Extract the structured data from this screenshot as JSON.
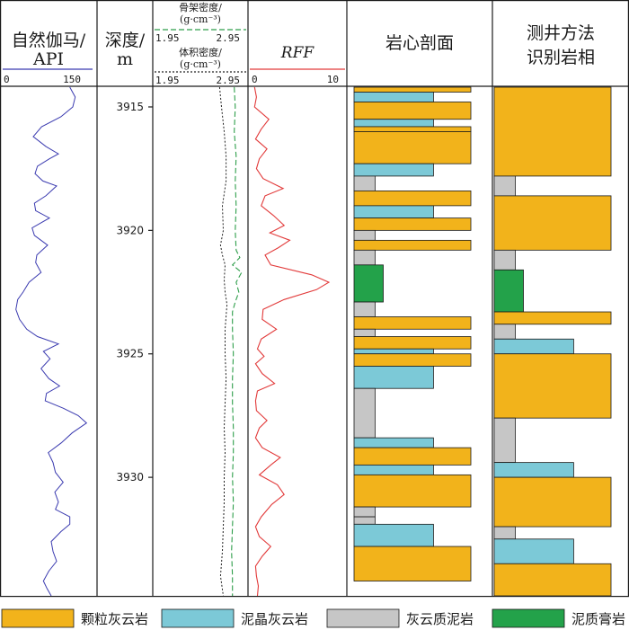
{
  "chart_data": {
    "type": "well_log",
    "depth_range": [
      3914.2,
      3934.8
    ],
    "depth_ticks": [
      3915,
      3920,
      3925,
      3930
    ],
    "tracks": {
      "gr": {
        "title_line1": "自然伽马/",
        "title_line2": "API",
        "scale_min": "0",
        "scale_max": "150",
        "range": [
          0,
          150
        ],
        "color": "#3b3bb0",
        "points": [
          [
            3914.2,
            112
          ],
          [
            3914.6,
            121
          ],
          [
            3915.0,
            117
          ],
          [
            3915.4,
            97
          ],
          [
            3915.8,
            65
          ],
          [
            3916.2,
            51
          ],
          [
            3916.6,
            72
          ],
          [
            3916.9,
            93
          ],
          [
            3917.1,
            78
          ],
          [
            3917.4,
            58
          ],
          [
            3917.7,
            54
          ],
          [
            3918.0,
            67
          ],
          [
            3918.2,
            90
          ],
          [
            3918.6,
            72
          ],
          [
            3918.9,
            53
          ],
          [
            3919.2,
            55
          ],
          [
            3919.5,
            78
          ],
          [
            3919.9,
            49
          ],
          [
            3920.2,
            53
          ],
          [
            3920.6,
            75
          ],
          [
            3921.0,
            57
          ],
          [
            3921.3,
            55
          ],
          [
            3921.7,
            64
          ],
          [
            3922.1,
            44
          ],
          [
            3922.5,
            34
          ],
          [
            3922.8,
            25
          ],
          [
            3923.2,
            22
          ],
          [
            3923.6,
            28
          ],
          [
            3924.0,
            40
          ],
          [
            3924.3,
            58
          ],
          [
            3924.6,
            93
          ],
          [
            3924.9,
            68
          ],
          [
            3925.2,
            79
          ],
          [
            3925.6,
            64
          ],
          [
            3926.0,
            77
          ],
          [
            3926.3,
            95
          ],
          [
            3926.6,
            73
          ],
          [
            3926.9,
            71
          ],
          [
            3927.2,
            101
          ],
          [
            3927.5,
            126
          ],
          [
            3927.8,
            140
          ],
          [
            3928.2,
            116
          ],
          [
            3928.6,
            98
          ],
          [
            3929.0,
            76
          ],
          [
            3929.4,
            84
          ],
          [
            3929.8,
            88
          ],
          [
            3930.2,
            101
          ],
          [
            3930.6,
            87
          ],
          [
            3931.0,
            93
          ],
          [
            3931.3,
            88
          ],
          [
            3931.6,
            112
          ],
          [
            3931.9,
            112
          ],
          [
            3932.2,
            97
          ],
          [
            3932.6,
            81
          ],
          [
            3933.0,
            84
          ],
          [
            3933.4,
            90
          ],
          [
            3933.8,
            77
          ],
          [
            3934.2,
            68
          ],
          [
            3934.5,
            74
          ],
          [
            3934.8,
            81
          ]
        ]
      },
      "density": {
        "title1": "骨架密度/",
        "unit1": "(g·cm⁻³)",
        "scale1_min": "1.95",
        "scale1_max": "2.95",
        "title2": "体积密度/",
        "unit2": "(g·cm⁻³)",
        "scale2_min": "1.95",
        "scale2_max": "2.95",
        "range": [
          1.95,
          2.95
        ],
        "matrix_color": "#2e9e4a",
        "bulk_color": "#222222",
        "matrix_points": [
          [
            3914.2,
            2.82
          ],
          [
            3915.0,
            2.83
          ],
          [
            3916.0,
            2.82
          ],
          [
            3917.0,
            2.84
          ],
          [
            3918.0,
            2.83
          ],
          [
            3919.0,
            2.84
          ],
          [
            3920.0,
            2.83
          ],
          [
            3920.8,
            2.84
          ],
          [
            3921.1,
            2.88
          ],
          [
            3921.4,
            2.8
          ],
          [
            3921.7,
            2.9
          ],
          [
            3922.1,
            2.84
          ],
          [
            3922.5,
            2.87
          ],
          [
            3922.9,
            2.83
          ],
          [
            3923.3,
            2.8
          ],
          [
            3924.0,
            2.8
          ],
          [
            3925.0,
            2.81
          ],
          [
            3926.0,
            2.8
          ],
          [
            3927.0,
            2.8
          ],
          [
            3928.0,
            2.81
          ],
          [
            3929.0,
            2.81
          ],
          [
            3930.0,
            2.8
          ],
          [
            3931.0,
            2.81
          ],
          [
            3932.0,
            2.8
          ],
          [
            3933.0,
            2.79
          ],
          [
            3934.0,
            2.8
          ],
          [
            3934.8,
            2.8
          ]
        ],
        "bulk_points": [
          [
            3914.2,
            2.66
          ],
          [
            3915.0,
            2.68
          ],
          [
            3916.0,
            2.71
          ],
          [
            3917.0,
            2.73
          ],
          [
            3918.0,
            2.73
          ],
          [
            3919.0,
            2.69
          ],
          [
            3920.0,
            2.7
          ],
          [
            3920.6,
            2.67
          ],
          [
            3921.0,
            2.69
          ],
          [
            3921.4,
            2.72
          ],
          [
            3922.0,
            2.71
          ],
          [
            3922.5,
            2.72
          ],
          [
            3923.0,
            2.74
          ],
          [
            3924.0,
            2.72
          ],
          [
            3925.0,
            2.72
          ],
          [
            3926.0,
            2.73
          ],
          [
            3927.0,
            2.72
          ],
          [
            3928.0,
            2.71
          ],
          [
            3929.0,
            2.72
          ],
          [
            3930.0,
            2.71
          ],
          [
            3931.0,
            2.71
          ],
          [
            3932.0,
            2.7
          ],
          [
            3933.0,
            2.69
          ],
          [
            3934.0,
            2.67
          ],
          [
            3934.8,
            2.7
          ]
        ]
      },
      "rff": {
        "title": "RFF",
        "scale_min": "0",
        "scale_max": "10",
        "range": [
          0,
          10
        ],
        "color": "#e23a3a",
        "points": [
          [
            3914.2,
            0.5
          ],
          [
            3914.6,
            0.7
          ],
          [
            3915.0,
            0.5
          ],
          [
            3915.5,
            2.0
          ],
          [
            3915.9,
            1.2
          ],
          [
            3916.3,
            0.6
          ],
          [
            3916.7,
            1.8
          ],
          [
            3917.1,
            1.0
          ],
          [
            3917.5,
            0.7
          ],
          [
            3917.9,
            1.4
          ],
          [
            3918.3,
            3.5
          ],
          [
            3918.6,
            1.6
          ],
          [
            3919.0,
            1.2
          ],
          [
            3919.4,
            2.5
          ],
          [
            3919.8,
            3.6
          ],
          [
            3920.1,
            2.1
          ],
          [
            3920.4,
            4.2
          ],
          [
            3920.7,
            3.0
          ],
          [
            3921.0,
            1.6
          ],
          [
            3921.4,
            2.2
          ],
          [
            3921.8,
            6.5
          ],
          [
            3922.1,
            8.3
          ],
          [
            3922.4,
            7.0
          ],
          [
            3922.8,
            3.6
          ],
          [
            3923.2,
            1.4
          ],
          [
            3923.6,
            1.3
          ],
          [
            3924.0,
            2.8
          ],
          [
            3924.4,
            1.2
          ],
          [
            3924.8,
            0.8
          ],
          [
            3925.1,
            1.5
          ],
          [
            3925.4,
            0.6
          ],
          [
            3925.8,
            1.3
          ],
          [
            3926.2,
            2.6
          ],
          [
            3926.5,
            0.8
          ],
          [
            3926.9,
            0.6
          ],
          [
            3927.3,
            0.7
          ],
          [
            3927.7,
            1.8
          ],
          [
            3928.0,
            1.0
          ],
          [
            3928.4,
            0.6
          ],
          [
            3928.8,
            1.3
          ],
          [
            3929.2,
            3.2
          ],
          [
            3929.5,
            2.2
          ],
          [
            3929.9,
            1.0
          ],
          [
            3930.3,
            2.9
          ],
          [
            3930.7,
            3.6
          ],
          [
            3931.1,
            2.3
          ],
          [
            3931.6,
            1.2
          ],
          [
            3932.0,
            0.6
          ],
          [
            3932.4,
            1.0
          ],
          [
            3932.8,
            2.2
          ],
          [
            3933.2,
            1.3
          ],
          [
            3933.6,
            0.6
          ],
          [
            3934.0,
            0.7
          ],
          [
            3934.4,
            0.9
          ],
          [
            3934.8,
            0.8
          ]
        ]
      },
      "core_section": {
        "title": "岩心剖面",
        "layers": [
          [
            3914.2,
            3914.4,
            "grainstone"
          ],
          [
            3914.4,
            3914.8,
            "mudstone"
          ],
          [
            3914.8,
            3915.5,
            "grainstone"
          ],
          [
            3915.5,
            3915.8,
            "mudstone"
          ],
          [
            3915.8,
            3916.0,
            "grainstone"
          ],
          [
            3916.0,
            3917.3,
            "grainstone"
          ],
          [
            3917.3,
            3917.8,
            "mudstone"
          ],
          [
            3917.8,
            3918.4,
            "dolomitic_mudstone"
          ],
          [
            3918.4,
            3919.0,
            "grainstone"
          ],
          [
            3919.0,
            3919.5,
            "mudstone"
          ],
          [
            3919.5,
            3920.0,
            "grainstone"
          ],
          [
            3920.0,
            3920.4,
            "dolomitic_mudstone"
          ],
          [
            3920.4,
            3920.8,
            "grainstone"
          ],
          [
            3920.8,
            3921.4,
            "dolomitic_mudstone"
          ],
          [
            3921.4,
            3922.9,
            "argillaceous_gypsum"
          ],
          [
            3922.9,
            3923.5,
            "dolomitic_mudstone"
          ],
          [
            3923.5,
            3924.0,
            "grainstone"
          ],
          [
            3924.0,
            3924.3,
            "dolomitic_mudstone"
          ],
          [
            3924.3,
            3924.8,
            "grainstone"
          ],
          [
            3924.8,
            3925.0,
            "mudstone"
          ],
          [
            3925.0,
            3925.5,
            "grainstone"
          ],
          [
            3925.5,
            3926.4,
            "mudstone"
          ],
          [
            3926.4,
            3928.4,
            "dolomitic_mudstone"
          ],
          [
            3928.4,
            3928.8,
            "mudstone"
          ],
          [
            3928.8,
            3929.5,
            "grainstone"
          ],
          [
            3929.5,
            3929.9,
            "mudstone"
          ],
          [
            3929.9,
            3931.2,
            "grainstone"
          ],
          [
            3931.2,
            3931.6,
            "dolomitic_mudstone"
          ],
          [
            3931.6,
            3931.9,
            "dolomitic_mudstone"
          ],
          [
            3931.9,
            3932.8,
            "mudstone"
          ],
          [
            3932.8,
            3934.2,
            "grainstone"
          ]
        ]
      },
      "log_facies": {
        "title_line1": "测井方法",
        "title_line2": "识别岩相",
        "layers": [
          [
            3914.2,
            3917.8,
            "grainstone"
          ],
          [
            3917.8,
            3918.6,
            "dolomitic_mudstone"
          ],
          [
            3918.6,
            3920.8,
            "grainstone"
          ],
          [
            3920.8,
            3921.6,
            "dolomitic_mudstone"
          ],
          [
            3921.6,
            3923.3,
            "argillaceous_gypsum"
          ],
          [
            3923.3,
            3923.8,
            "grainstone"
          ],
          [
            3923.8,
            3924.4,
            "dolomitic_mudstone"
          ],
          [
            3924.4,
            3925.0,
            "mudstone"
          ],
          [
            3925.0,
            3927.6,
            "grainstone"
          ],
          [
            3927.6,
            3929.4,
            "dolomitic_mudstone"
          ],
          [
            3929.4,
            3930.0,
            "mudstone"
          ],
          [
            3930.0,
            3932.0,
            "grainstone"
          ],
          [
            3932.0,
            3932.5,
            "dolomitic_mudstone"
          ],
          [
            3932.5,
            3933.5,
            "mudstone"
          ],
          [
            3933.5,
            3934.8,
            "grainstone"
          ]
        ]
      }
    },
    "depth_title_line1": "深度/",
    "depth_title_line2": "m",
    "lithology_styles": {
      "grainstone": {
        "color": "#f2b31b",
        "label": "颗粒灰云岩",
        "width": 1.0
      },
      "mudstone": {
        "color": "#7cc9d7",
        "label": "泥晶灰云岩",
        "width": 0.68
      },
      "dolomitic_mudstone": {
        "color": "#c6c6c6",
        "label": "灰云质泥岩",
        "width": 0.18
      },
      "argillaceous_gypsum": {
        "color": "#23a24a",
        "label": "泥质膏岩",
        "width": 0.25
      }
    },
    "legend": [
      {
        "key": "grainstone",
        "label": "颗粒灰云岩"
      },
      {
        "key": "mudstone",
        "label": "泥晶灰云岩"
      },
      {
        "key": "dolomitic_mudstone",
        "label": "灰云质泥岩"
      },
      {
        "key": "argillaceous_gypsum",
        "label": "泥质膏岩"
      }
    ]
  }
}
